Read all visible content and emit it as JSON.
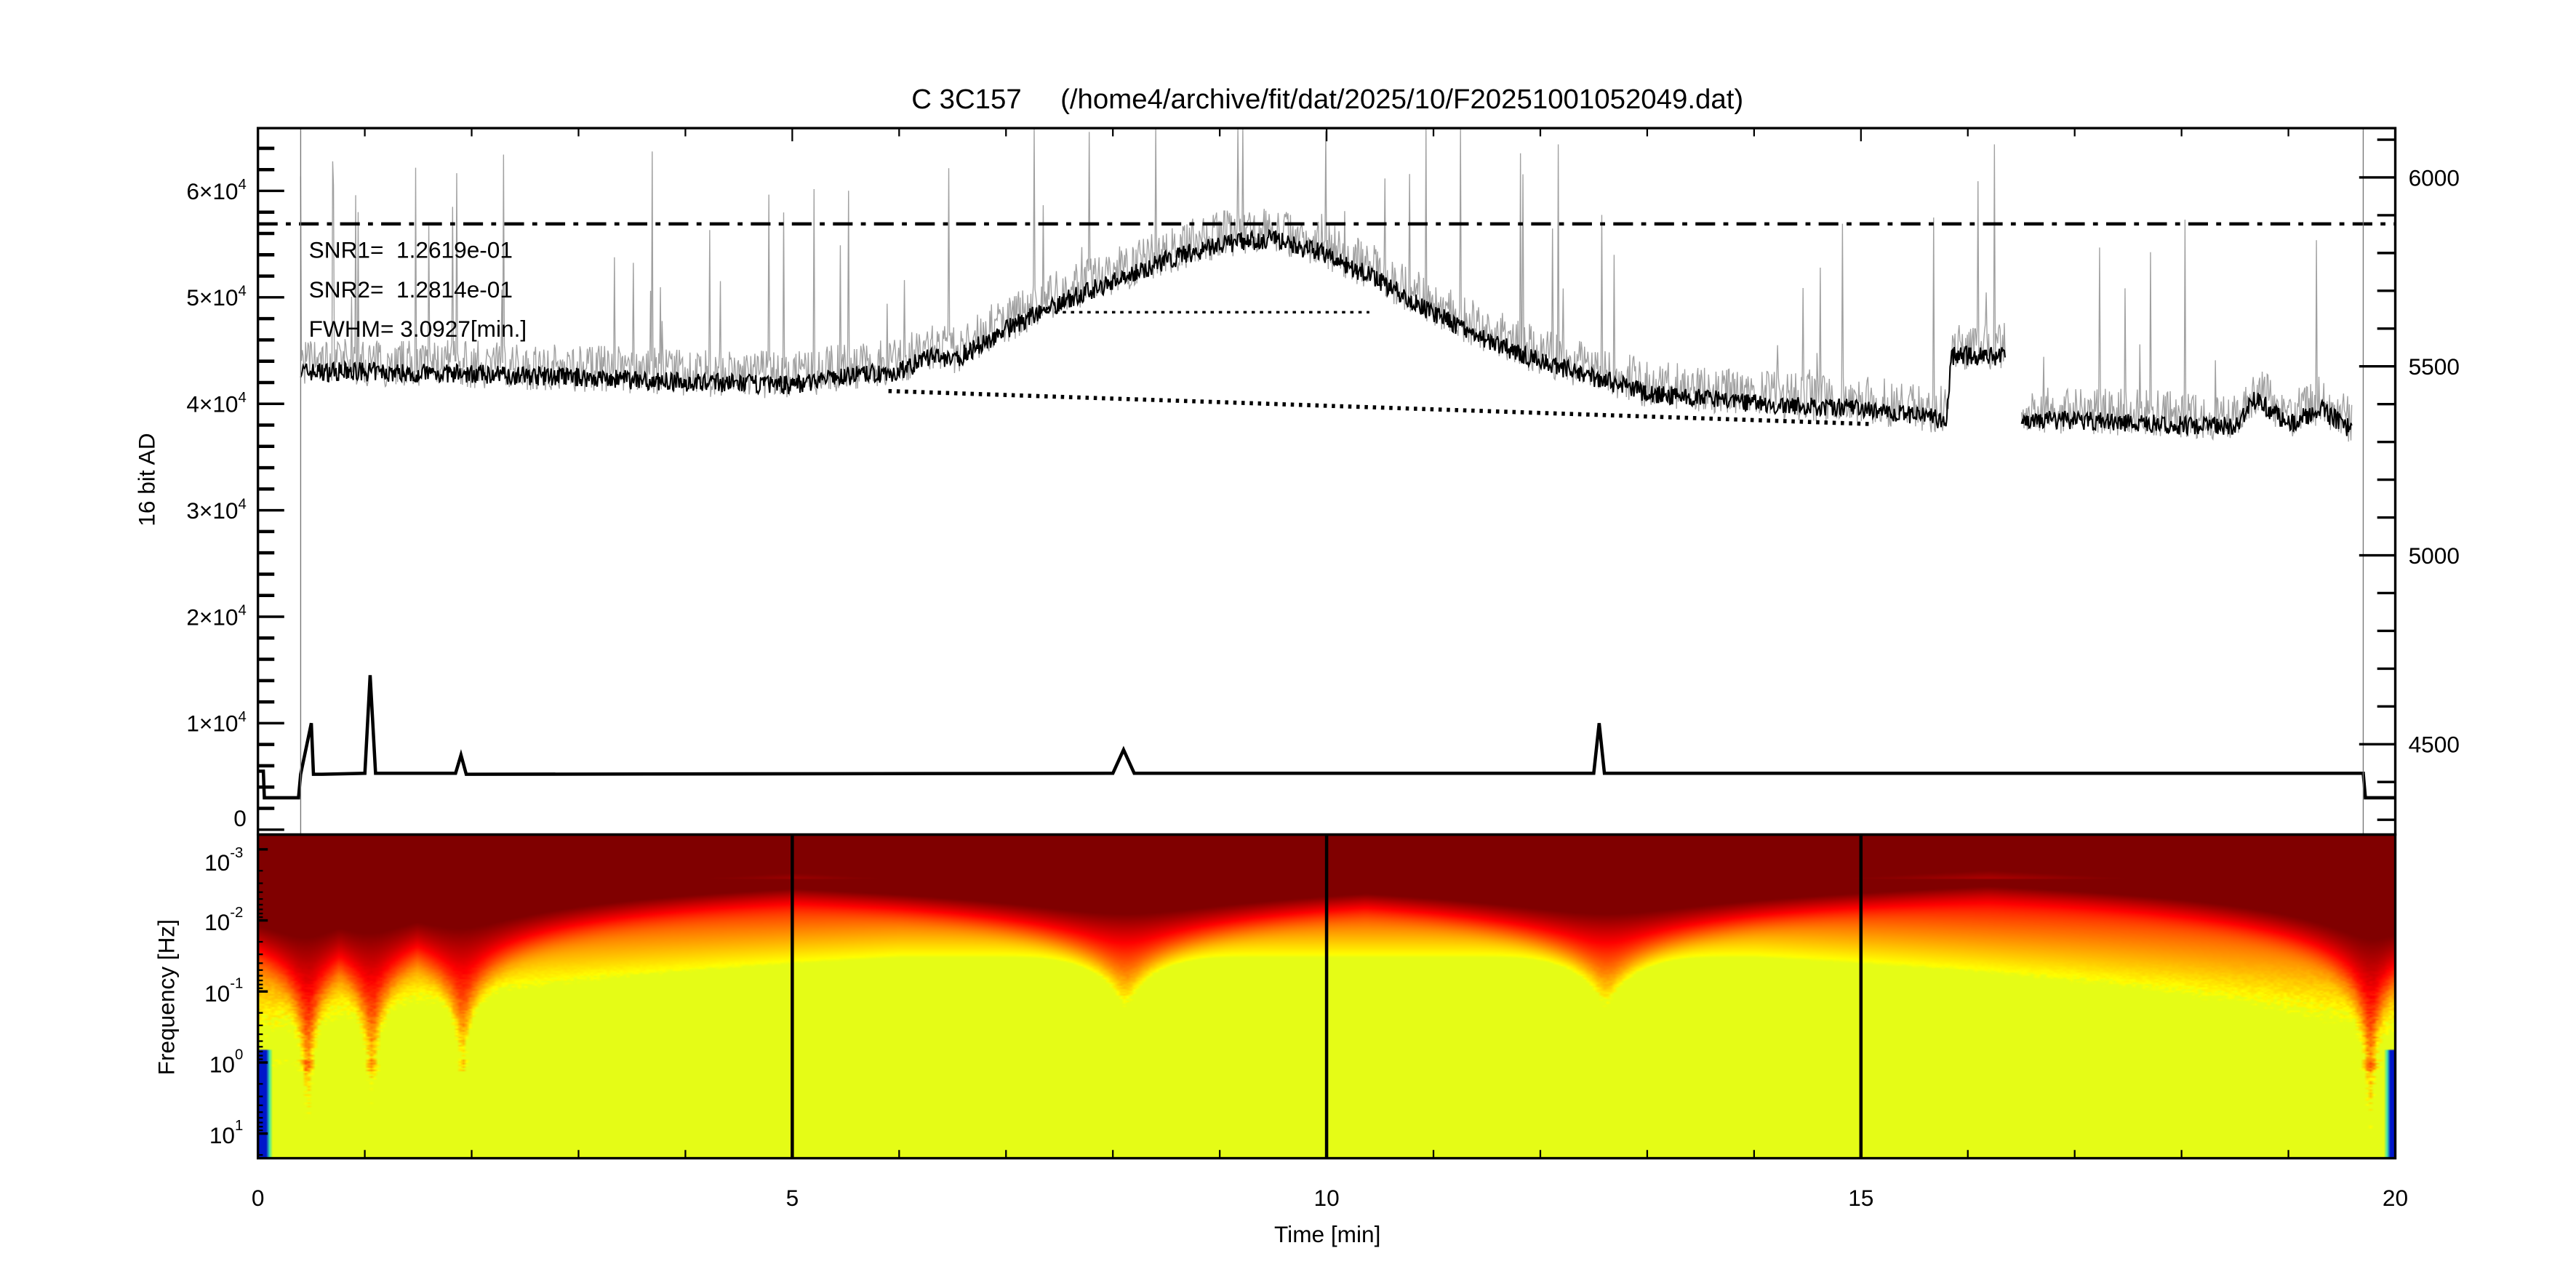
{
  "chart_data": [
    {
      "type": "line",
      "title": "C 3C157     (/home4/archive/fit/dat/2025/10/F20251001052049.dat)",
      "ylabel": "16 bit AD",
      "xlim": [
        0,
        20
      ],
      "ylim": [
        0,
        65900
      ],
      "y2lim": [
        4278,
        6130
      ],
      "yticks": [
        {
          "value": 0,
          "mantissa": "0",
          "exp": ""
        },
        {
          "value": 10000,
          "mantissa": "1×10",
          "exp": "4"
        },
        {
          "value": 20000,
          "mantissa": "2×10",
          "exp": "4"
        },
        {
          "value": 30000,
          "mantissa": "3×10",
          "exp": "4"
        },
        {
          "value": 40000,
          "mantissa": "4×10",
          "exp": "4"
        },
        {
          "value": 50000,
          "mantissa": "5×10",
          "exp": "4"
        },
        {
          "value": 60000,
          "mantissa": "6×10",
          "exp": "4"
        }
      ],
      "y2ticks": [
        {
          "value": 4500,
          "label": "4500"
        },
        {
          "value": 5000,
          "label": "5000"
        },
        {
          "value": 5500,
          "label": "5500"
        },
        {
          "value": 6000,
          "label": "6000"
        }
      ],
      "annotations": [
        "SNR1=  1.2619e-01",
        "SNR2=  1.2814e-01",
        "FWHM= 3.0927[min.]"
      ],
      "threshold_level": 56900,
      "baseline_fit": {
        "x": [
          5.9,
          15.1
        ],
        "y": [
          41200,
          38100
        ]
      },
      "fwhm_line": {
        "x": [
          7.3,
          10.4
        ],
        "y": 48600
      },
      "series": [
        {
          "color": "#000000",
          "x": [
            0.4,
            1,
            2,
            3,
            4,
            5,
            5.5,
            6,
            6.3,
            6.5,
            7,
            7.5,
            8,
            8.5,
            9,
            9.5,
            10,
            10.5,
            11,
            11.5,
            12,
            12.5,
            13,
            14,
            15,
            15.8,
            15.85,
            16.35,
            16.4,
            16.5,
            17,
            18,
            18.5,
            18.7,
            19,
            19.3,
            19.6
          ],
          "y": [
            43000,
            43000,
            42800,
            42500,
            42000,
            41800,
            42600,
            43000,
            44500,
            44000,
            47000,
            49500,
            51500,
            53500,
            55000,
            55500,
            54000,
            51500,
            48500,
            46000,
            44000,
            42500,
            41000,
            40000,
            39500,
            38500,
            44500,
            44500,
            null,
            38500,
            38500,
            38000,
            38000,
            40500,
            38000,
            39500,
            37500
          ]
        },
        {
          "color": "#000000",
          "x": [
            0,
            0.05,
            0.06,
            0.38,
            0.4,
            0.5,
            0.52,
            0.6,
            1.0,
            1.05,
            1.1,
            1.85,
            1.9,
            1.95,
            8.0,
            8.1,
            8.2,
            12.5,
            12.55,
            12.6,
            19.7,
            19.72,
            20
          ],
          "y": [
            5500,
            5500,
            3000,
            3000,
            5200,
            10000,
            5200,
            5200,
            5300,
            14500,
            5300,
            5300,
            7000,
            5200,
            5300,
            7500,
            5300,
            5300,
            10000,
            5300,
            5300,
            3000,
            3000
          ]
        }
      ]
    },
    {
      "type": "heatmap",
      "ylabel": "Frequency [Hz]",
      "xlabel": "Time [min]",
      "xlim": [
        0,
        20
      ],
      "ylim": [
        0.001,
        20
      ],
      "yscale": "log",
      "xticks": [
        "0",
        "5",
        "10",
        "15",
        "20"
      ],
      "yticks": [
        {
          "value": 0.001,
          "base": "10",
          "exp": "-3"
        },
        {
          "value": 0.01,
          "base": "10",
          "exp": "-2"
        },
        {
          "value": 0.1,
          "base": "10",
          "exp": "-1"
        },
        {
          "value": 1,
          "base": "10",
          "exp": "0"
        },
        {
          "value": 10,
          "base": "10",
          "exp": "1"
        }
      ],
      "colormap": [
        "#0000c8",
        "#00e0e0",
        "#ffff00",
        "#ff8000",
        "#ff0000",
        "#800000"
      ],
      "marker_lines_x": [
        5,
        10,
        15
      ],
      "dips_x": [
        0.45,
        1.05,
        1.9,
        8.1,
        12.6,
        19.75
      ]
    }
  ]
}
